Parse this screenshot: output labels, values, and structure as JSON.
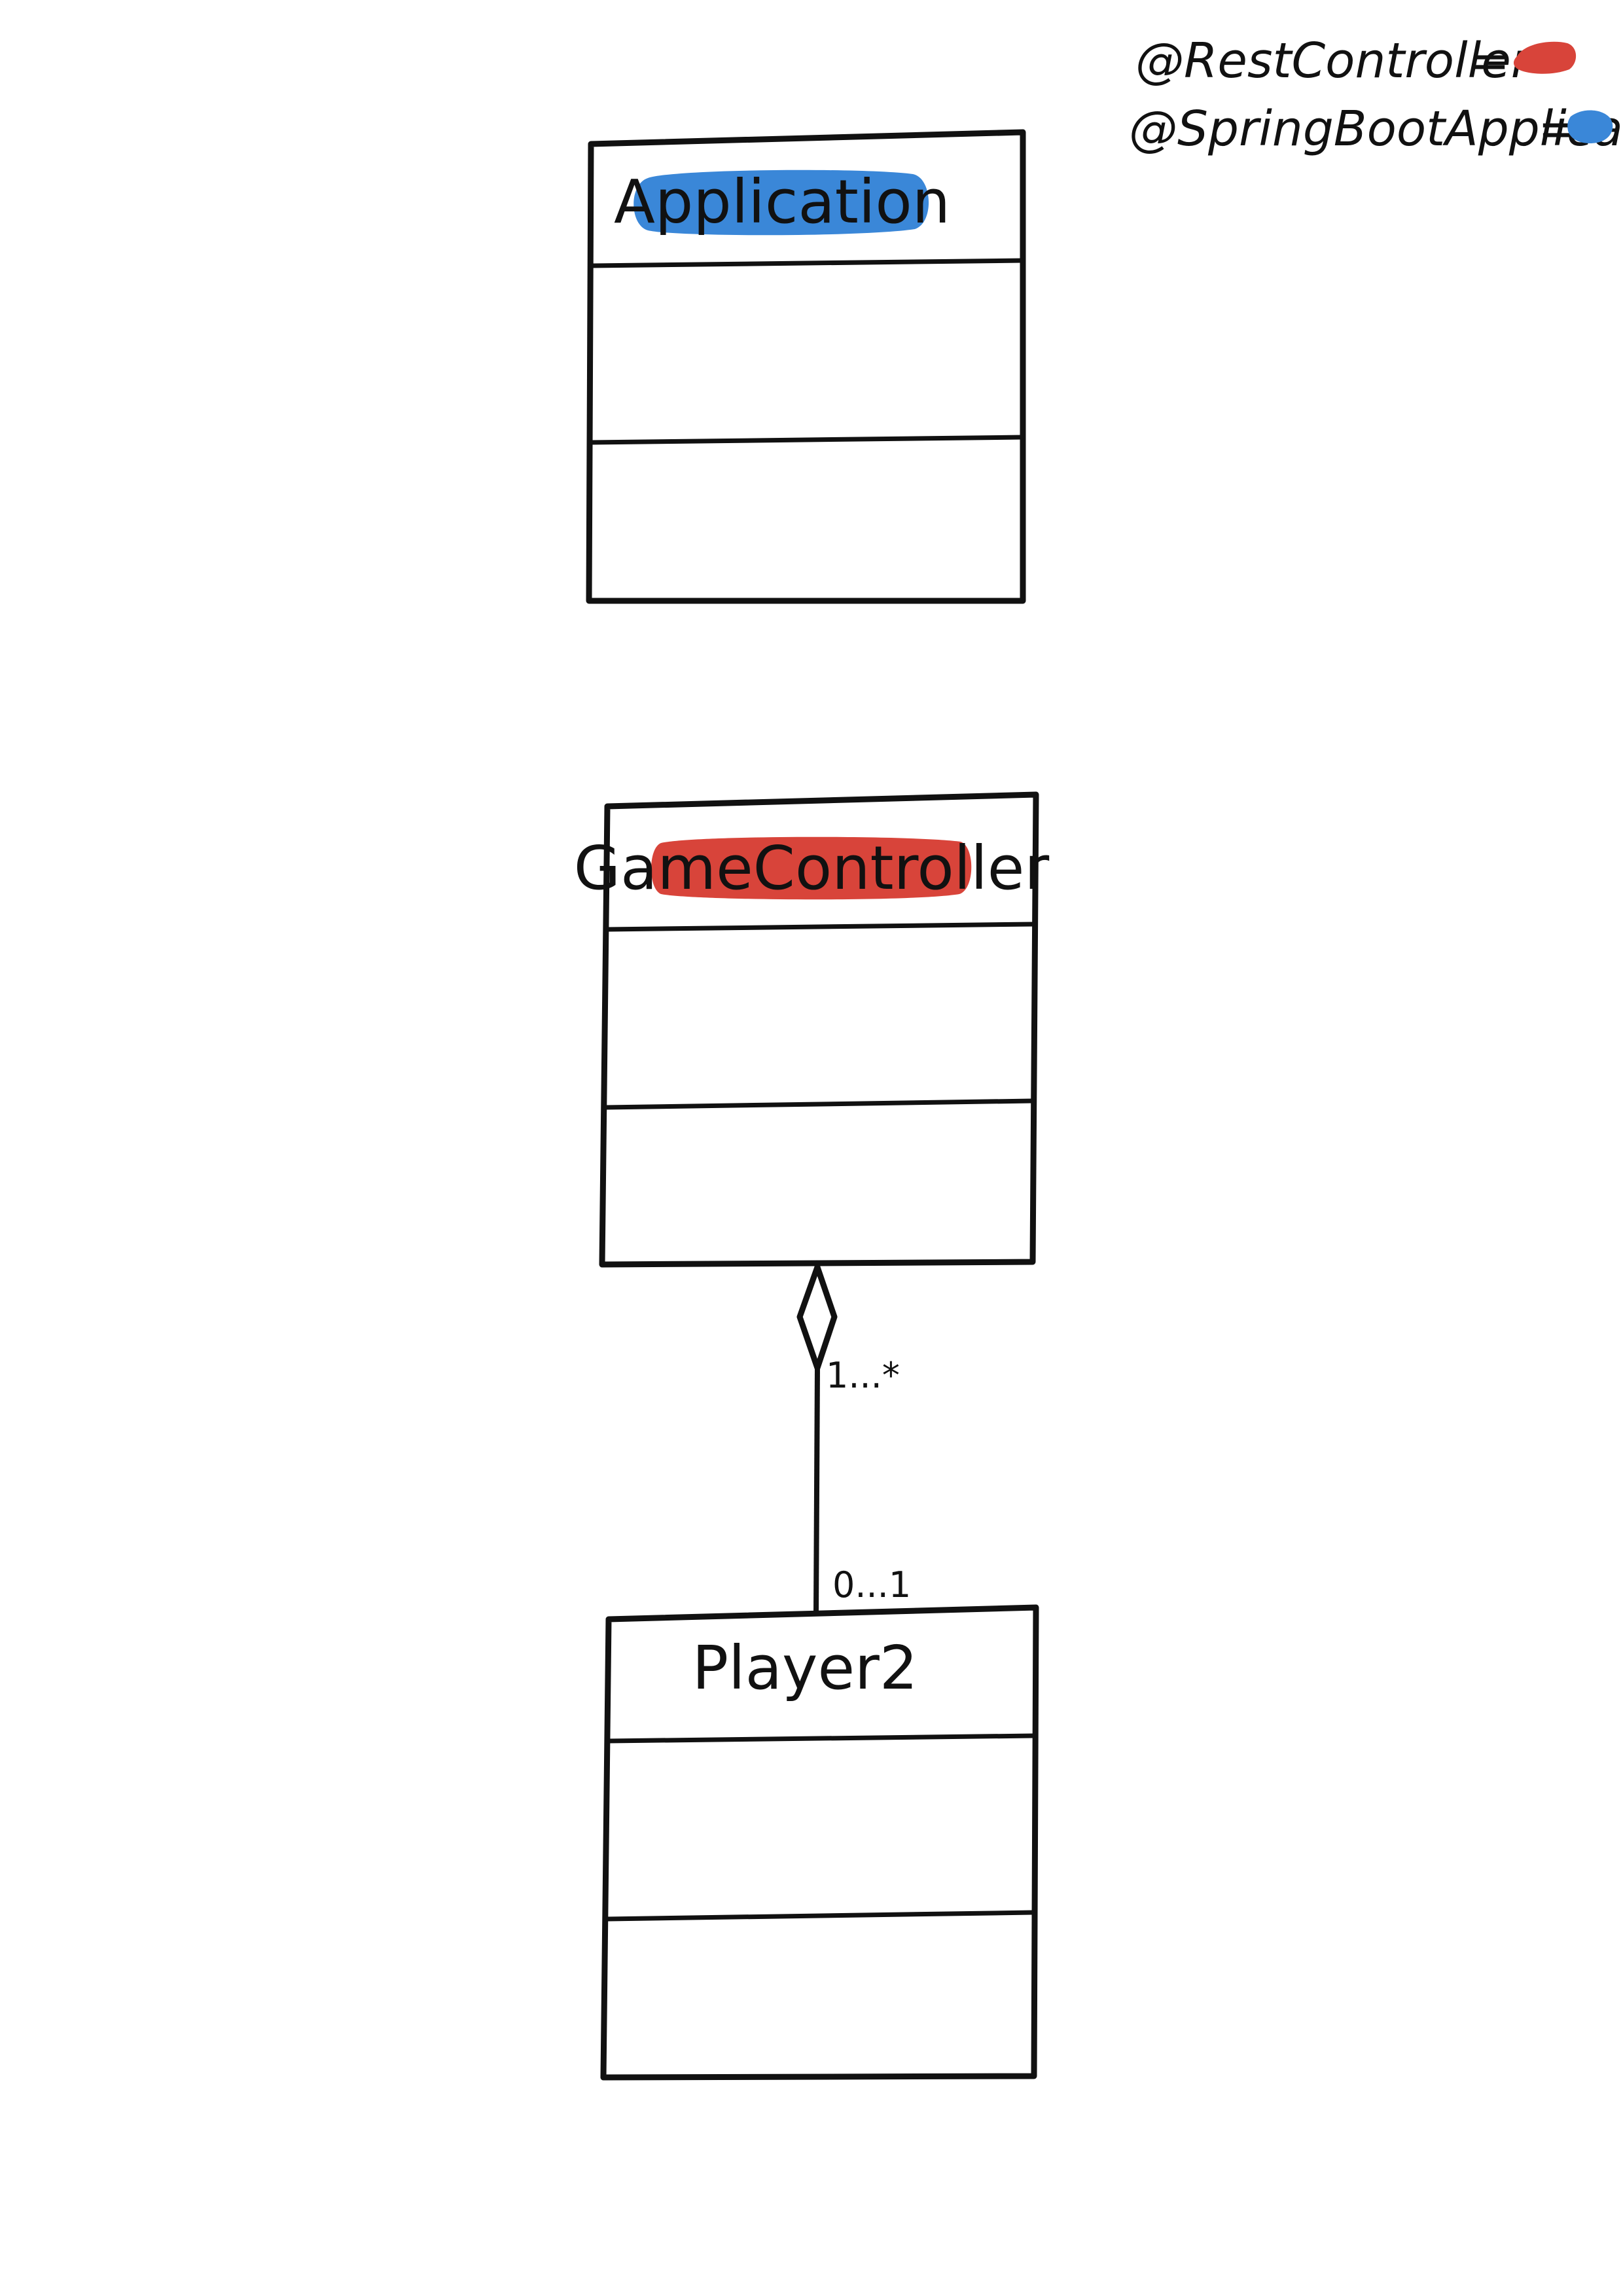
{
  "legend": [
    {
      "annotation": "@RestController",
      "separator": "=",
      "color": "#d8443a"
    },
    {
      "annotation": "@SpringBootApplication",
      "separator": "=",
      "color": "#3a87d8"
    }
  ],
  "classes": [
    {
      "name": "Application",
      "highlight": "#3a87d8"
    },
    {
      "name": "GameController",
      "highlight": "#d8443a"
    },
    {
      "name": "Player2",
      "highlight": ""
    }
  ],
  "relation": {
    "type": "aggregation",
    "whole": "GameController",
    "part": "Player2",
    "whole_multiplicity": "1...*",
    "part_multiplicity": "0...1"
  },
  "colors": {
    "ink": "#111111",
    "rest_controller": "#d8443a",
    "spring_boot_application": "#3a87d8"
  }
}
